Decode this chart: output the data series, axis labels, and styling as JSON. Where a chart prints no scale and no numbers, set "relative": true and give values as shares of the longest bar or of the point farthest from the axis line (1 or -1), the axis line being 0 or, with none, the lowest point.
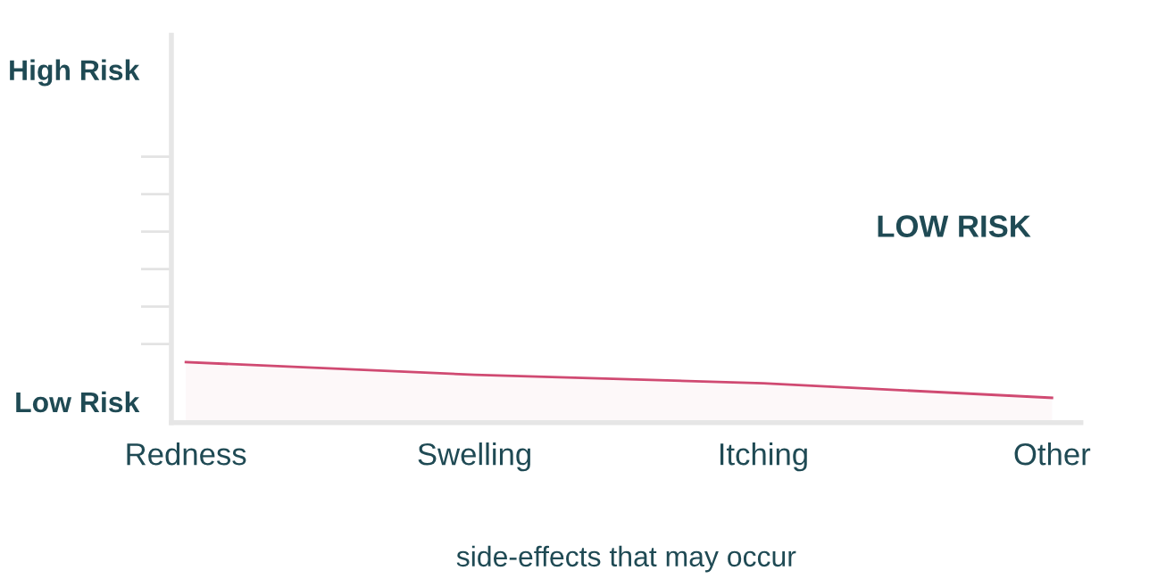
{
  "chart_data": {
    "type": "area",
    "categories": [
      "Redness",
      "Swelling",
      "Itching",
      "Other"
    ],
    "series": [
      {
        "color": "#d04a72",
        "values": [
          1,
          0.79,
          0.65,
          0.41
        ]
      }
    ],
    "xlabel": "side-effects that may occur",
    "relative": true,
    "annotations": [
      "High Risk",
      "Low Risk",
      "LOW RISK"
    ],
    "grid": false,
    "legend": false
  }
}
